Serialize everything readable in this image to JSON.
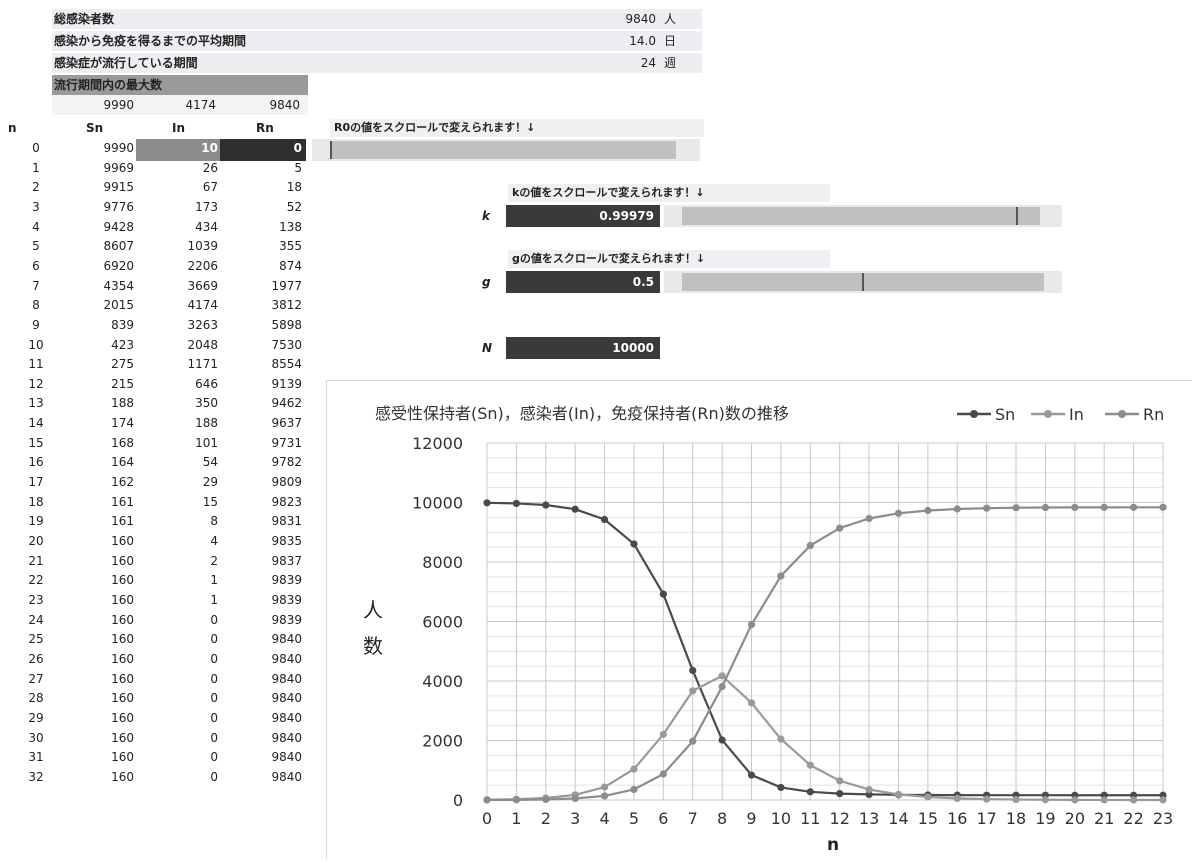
{
  "summary": {
    "rows": [
      {
        "label": "総感染者数",
        "value": "9840",
        "unit": "人"
      },
      {
        "label": "感染から免疫を得るまでの平均期間",
        "value": "14.0",
        "unit": "日"
      },
      {
        "label": "感染症が流行している期間",
        "value": "24",
        "unit": "週"
      }
    ],
    "max_header": "流行期間内の最大数",
    "max_values": [
      "9990",
      "4174",
      "9840"
    ]
  },
  "table": {
    "headers": [
      "n",
      "Sn",
      "In",
      "Rn"
    ],
    "rows": [
      [
        "0",
        "9990",
        "10",
        "0"
      ],
      [
        "1",
        "9969",
        "26",
        "5"
      ],
      [
        "2",
        "9915",
        "67",
        "18"
      ],
      [
        "3",
        "9776",
        "173",
        "52"
      ],
      [
        "4",
        "9428",
        "434",
        "138"
      ],
      [
        "5",
        "8607",
        "1039",
        "355"
      ],
      [
        "6",
        "6920",
        "2206",
        "874"
      ],
      [
        "7",
        "4354",
        "3669",
        "1977"
      ],
      [
        "8",
        "2015",
        "4174",
        "3812"
      ],
      [
        "9",
        "839",
        "3263",
        "5898"
      ],
      [
        "10",
        "423",
        "2048",
        "7530"
      ],
      [
        "11",
        "275",
        "1171",
        "8554"
      ],
      [
        "12",
        "215",
        "646",
        "9139"
      ],
      [
        "13",
        "188",
        "350",
        "9462"
      ],
      [
        "14",
        "174",
        "188",
        "9637"
      ],
      [
        "15",
        "168",
        "101",
        "9731"
      ],
      [
        "16",
        "164",
        "54",
        "9782"
      ],
      [
        "17",
        "162",
        "29",
        "9809"
      ],
      [
        "18",
        "161",
        "15",
        "9823"
      ],
      [
        "19",
        "161",
        "8",
        "9831"
      ],
      [
        "20",
        "160",
        "4",
        "9835"
      ],
      [
        "21",
        "160",
        "2",
        "9837"
      ],
      [
        "22",
        "160",
        "1",
        "9839"
      ],
      [
        "23",
        "160",
        "1",
        "9839"
      ],
      [
        "24",
        "160",
        "0",
        "9839"
      ],
      [
        "25",
        "160",
        "0",
        "9840"
      ],
      [
        "26",
        "160",
        "0",
        "9840"
      ],
      [
        "27",
        "160",
        "0",
        "9840"
      ],
      [
        "28",
        "160",
        "0",
        "9840"
      ],
      [
        "29",
        "160",
        "0",
        "9840"
      ],
      [
        "30",
        "160",
        "0",
        "9840"
      ],
      [
        "31",
        "160",
        "0",
        "9840"
      ],
      [
        "32",
        "160",
        "0",
        "9840"
      ]
    ]
  },
  "controls": {
    "r0_label": "R0の値をスクロールで変えられます！↓",
    "k_label": "kの値をスクロールで変えられます！↓",
    "k_name": "k",
    "k_value": "0.99979",
    "g_label": "gの値をスクロールで変えられます！↓",
    "g_name": "g",
    "g_value": "0.5",
    "n_name": "N",
    "n_value": "10000"
  },
  "chart_data": {
    "type": "line",
    "title": "感受性保持者(Sn)，感染者(In)，免疫保持者(Rn)数の推移",
    "xlabel": "n",
    "ylabel": "人数",
    "ylim": [
      0,
      12000
    ],
    "yticks": [
      0,
      2000,
      4000,
      6000,
      8000,
      10000,
      12000
    ],
    "x": [
      0,
      1,
      2,
      3,
      4,
      5,
      6,
      7,
      8,
      9,
      10,
      11,
      12,
      13,
      14,
      15,
      16,
      17,
      18,
      19,
      20,
      21,
      22,
      23
    ],
    "grid": true,
    "legend_position": "top-right",
    "series": [
      {
        "name": "Sn",
        "color": "#4a4a4a",
        "values": [
          9990,
          9969,
          9915,
          9776,
          9428,
          8607,
          6920,
          4354,
          2015,
          839,
          423,
          275,
          215,
          188,
          174,
          168,
          164,
          162,
          161,
          161,
          160,
          160,
          160,
          160
        ]
      },
      {
        "name": "In",
        "color": "#9a9a9a",
        "values": [
          10,
          26,
          67,
          173,
          434,
          1039,
          2206,
          3669,
          4174,
          3263,
          2048,
          1171,
          646,
          350,
          188,
          101,
          54,
          29,
          15,
          8,
          4,
          2,
          1,
          1
        ]
      },
      {
        "name": "Rn",
        "color": "#8c8c8c",
        "values": [
          0,
          5,
          18,
          52,
          138,
          355,
          874,
          1977,
          3812,
          5898,
          7530,
          8554,
          9139,
          9462,
          9637,
          9731,
          9782,
          9809,
          9823,
          9831,
          9835,
          9837,
          9839,
          9839
        ]
      }
    ]
  }
}
